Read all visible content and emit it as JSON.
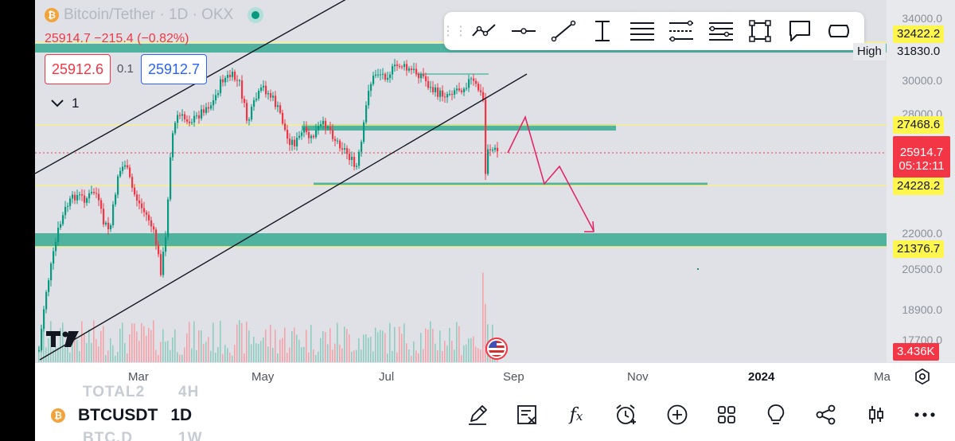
{
  "legend": {
    "coin_glyph": "₿",
    "title": "Bitcoin/Tether · 1D · OKX",
    "change_text": "25914.7  −215.4 (−0.82%)",
    "collapse_count": "1"
  },
  "quote": {
    "bid": "25912.6",
    "spread": "0.1",
    "ask": "25912.7"
  },
  "price_axis": {
    "ticks": [
      "34000.0",
      "30000.0",
      "28000.0",
      "22000.0",
      "20500.0",
      "18900.0",
      "17700.0"
    ],
    "labels": {
      "level_32422": "32422.2",
      "high_caption": "High",
      "high_value": "31830.0",
      "level_27468": "27468.6",
      "last_price": "25914.7",
      "countdown": "05:12:11",
      "level_24228": "24228.2",
      "level_21376": "21376.7",
      "volume": "3.436K"
    }
  },
  "time_axis": {
    "labels": [
      "Mar",
      "May",
      "Jul",
      "Sep",
      "Nov",
      "2024",
      "Ma"
    ]
  },
  "toolbar": {
    "tools": [
      "trend-line-path",
      "horizontal-ray",
      "trend-line",
      "vertical-measure",
      "parallel-lines",
      "pitchfork-levels",
      "fib-channel",
      "rectangle",
      "callout",
      "note-shape"
    ]
  },
  "bottom": {
    "ghost_top": "TOTAL2",
    "ghost_top_interval": "4H",
    "coin_glyph": "₿",
    "symbol": "BTCUSDT",
    "interval": "1D",
    "ghost_bottom": "BTC.D",
    "ghost_bottom_interval": "1W"
  },
  "colors": {
    "chart_bg": "#dfe1e6",
    "up": "#089981",
    "down": "#f23645",
    "zone": "#4fb39f",
    "level_yellow": "#f7f08a",
    "label_yellow": "#fff64d"
  }
}
